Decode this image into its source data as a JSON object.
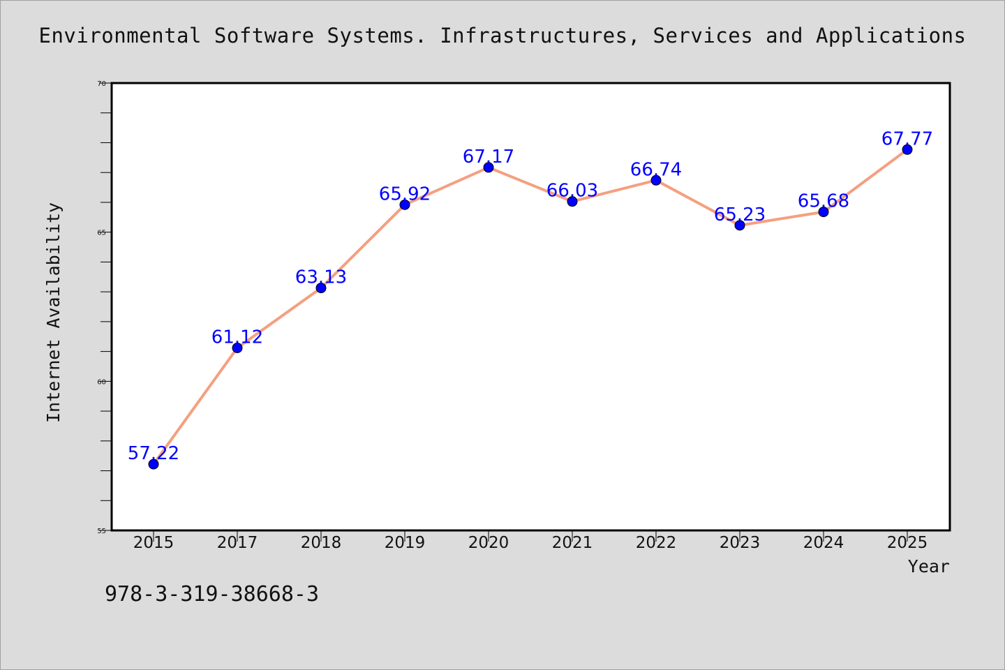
{
  "page": {
    "title": "Environmental Software Systems. Infrastructures, Services and Applications",
    "isbn": "978-3-319-38668-3"
  },
  "chart_data": {
    "type": "line",
    "title": "Environmental Software Systems. Infrastructures, Services and Applications",
    "xlabel": "Year",
    "ylabel": "Internet Availability",
    "categories": [
      "2015",
      "2017",
      "2018",
      "2019",
      "2020",
      "2021",
      "2022",
      "2023",
      "2024",
      "2025"
    ],
    "series": [
      {
        "values": [
          57.22,
          61.12,
          63.13,
          65.92,
          67.17,
          66.03,
          66.74,
          65.23,
          65.68,
          67.77
        ],
        "line_color": "#f4a080",
        "marker_color": "#0000ff"
      }
    ],
    "data_labels": [
      "57.22",
      "61.12",
      "63.13",
      "65.92",
      "67.17",
      "66.03",
      "66.74",
      "65.23",
      "65.68",
      "67.77"
    ],
    "ylim": [
      55,
      70
    ],
    "yticks": [
      "55",
      "60",
      "65",
      "70"
    ],
    "grid": false,
    "legend": "none"
  }
}
